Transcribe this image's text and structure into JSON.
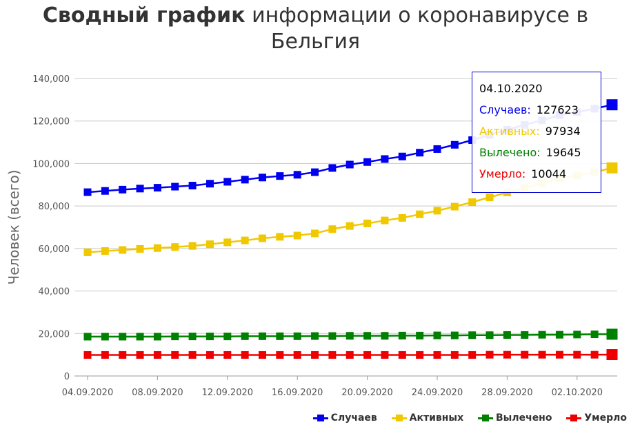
{
  "title": {
    "bold": "Сводный график",
    "rest": " информации о коронавирусе в Бельгия"
  },
  "chart_data": {
    "type": "line",
    "ylabel": "Человек (всего)",
    "ylim": [
      0,
      140000
    ],
    "yticks": [
      "0",
      "20,000",
      "40,000",
      "60,000",
      "80,000",
      "100,000",
      "120,000",
      "140,000"
    ],
    "xticks": [
      "04.09.2020",
      "08.09.2020",
      "12.09.2020",
      "16.09.2020",
      "20.09.2020",
      "24.09.2020",
      "28.09.2020",
      "02.10.2020"
    ],
    "x": [
      "04.09.2020",
      "05.09.2020",
      "06.09.2020",
      "07.09.2020",
      "08.09.2020",
      "09.09.2020",
      "10.09.2020",
      "11.09.2020",
      "12.09.2020",
      "13.09.2020",
      "14.09.2020",
      "15.09.2020",
      "16.09.2020",
      "17.09.2020",
      "18.09.2020",
      "19.09.2020",
      "20.09.2020",
      "21.09.2020",
      "22.09.2020",
      "23.09.2020",
      "24.09.2020",
      "25.09.2020",
      "26.09.2020",
      "27.09.2020",
      "28.09.2020",
      "29.09.2020",
      "30.09.2020",
      "01.10.2020",
      "02.10.2020",
      "03.10.2020",
      "04.10.2020"
    ],
    "grid": true,
    "legend_position": "bottom-right",
    "series": [
      {
        "name": "Случаев",
        "color": "#0000ee",
        "values": [
          86500,
          87100,
          87700,
          88200,
          88600,
          89100,
          89600,
          90500,
          91400,
          92400,
          93400,
          94100,
          94700,
          95900,
          97900,
          99500,
          100700,
          102100,
          103300,
          105100,
          106800,
          108800,
          111000,
          113500,
          115900,
          118200,
          120300,
          122800,
          124200,
          125800,
          127623
        ]
      },
      {
        "name": "Активных",
        "color": "#f0c800",
        "values": [
          58200,
          58800,
          59300,
          59800,
          60200,
          60700,
          61200,
          62000,
          62900,
          63800,
          64800,
          65500,
          66100,
          67100,
          69100,
          70600,
          71800,
          73200,
          74400,
          76100,
          77800,
          79700,
          81800,
          84100,
          86400,
          88600,
          90600,
          93000,
          94400,
          95900,
          97934
        ]
      },
      {
        "name": "Вылечено",
        "color": "#008000",
        "values": [
          18500,
          18500,
          18500,
          18500,
          18500,
          18600,
          18600,
          18600,
          18600,
          18700,
          18700,
          18700,
          18700,
          18800,
          18800,
          18900,
          18900,
          18900,
          19000,
          19000,
          19100,
          19100,
          19200,
          19200,
          19300,
          19300,
          19400,
          19400,
          19500,
          19600,
          19645
        ]
      },
      {
        "name": "Умерло",
        "color": "#ee0000",
        "values": [
          9900,
          9900,
          9900,
          9900,
          9900,
          9900,
          9900,
          9900,
          9900,
          9900,
          9900,
          9900,
          9900,
          9900,
          9900,
          9900,
          9900,
          9900,
          9900,
          9900,
          9900,
          9900,
          9900,
          10000,
          10000,
          10000,
          10000,
          10000,
          10000,
          10000,
          10044
        ]
      }
    ],
    "tooltip": {
      "date": "04.10.2020",
      "rows": [
        {
          "label": "Случаев:",
          "value": "127623",
          "color": "#0000ee"
        },
        {
          "label": "Активных:",
          "value": "97934",
          "color": "#f0c800"
        },
        {
          "label": "Вылечено:",
          "value": "19645",
          "color": "#008000"
        },
        {
          "label": "Умерло:",
          "value": "10044",
          "color": "#ee0000"
        }
      ]
    }
  }
}
